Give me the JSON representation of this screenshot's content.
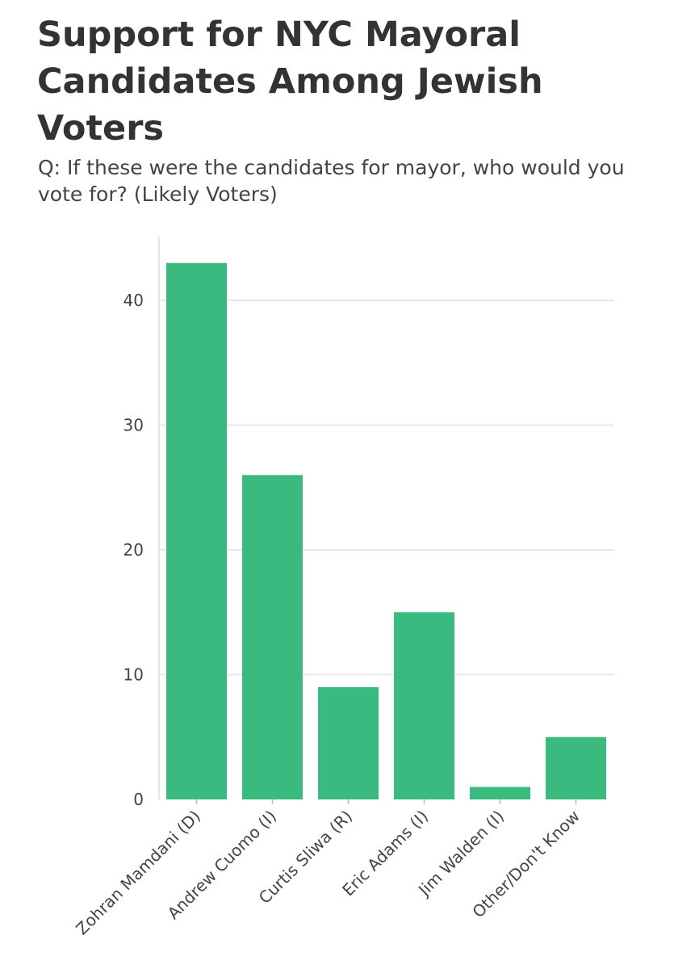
{
  "title": "Support for NYC Mayoral Candidates Among Jewish Voters",
  "subtitle": "Q: If these were the candidates for mayor, who would you vote for? (Likely Voters)",
  "chart_data": {
    "type": "bar",
    "title": "Support for NYC Mayoral Candidates Among Jewish Voters",
    "subtitle": "Q: If these were the candidates for mayor, who would you vote for? (Likely Voters)",
    "categories": [
      "Zohran Mamdani (D)",
      "Andrew Cuomo (I)",
      "Curtis Sliwa (R)",
      "Eric Adams (I)",
      "Jim Walden (I)",
      "Other/Don't Know"
    ],
    "values": [
      43,
      26,
      9,
      15,
      1,
      5
    ],
    "xlabel": "",
    "ylabel": "",
    "ylim": [
      0,
      45
    ],
    "yticks": [
      0,
      10,
      20,
      30,
      40
    ],
    "grid": true,
    "legend": "none",
    "bar_color": "#3bba80",
    "grid_color": "#e8e8e8"
  }
}
